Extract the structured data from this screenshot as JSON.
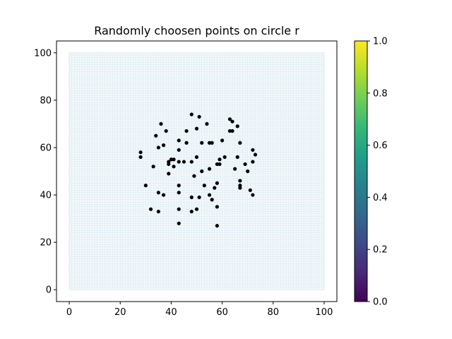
{
  "chart_data": {
    "type": "scatter",
    "title": "Randomly choosen points on circle r",
    "xlabel": "",
    "ylabel": "",
    "xlim": [
      -5,
      105
    ],
    "ylim": [
      -5,
      105
    ],
    "x_ticks": [
      0,
      20,
      40,
      60,
      80,
      100
    ],
    "y_ticks": [
      0,
      20,
      40,
      60,
      80,
      100
    ],
    "x_tick_labels": [
      "0",
      "20",
      "40",
      "60",
      "80",
      "100"
    ],
    "y_tick_labels": [
      "0",
      "20",
      "40",
      "60",
      "80",
      "100"
    ],
    "grid_extent": [
      0,
      100
    ],
    "grid_color": "#d6e8f0",
    "point_color": "#000000",
    "points": [
      [
        48,
        74
      ],
      [
        51,
        73
      ],
      [
        63,
        72
      ],
      [
        64,
        71
      ],
      [
        36,
        70
      ],
      [
        54,
        70
      ],
      [
        66,
        69
      ],
      [
        50,
        68
      ],
      [
        38,
        67
      ],
      [
        46,
        67
      ],
      [
        63,
        67
      ],
      [
        64,
        67
      ],
      [
        34,
        65
      ],
      [
        43,
        63
      ],
      [
        46,
        62
      ],
      [
        52,
        62
      ],
      [
        55,
        62
      ],
      [
        56,
        62
      ],
      [
        60,
        63
      ],
      [
        67,
        62
      ],
      [
        35,
        60
      ],
      [
        37,
        61
      ],
      [
        43,
        59
      ],
      [
        72,
        59
      ],
      [
        28,
        58
      ],
      [
        73,
        57
      ],
      [
        28,
        56
      ],
      [
        50,
        56
      ],
      [
        61,
        56
      ],
      [
        66,
        56
      ],
      [
        40,
        55
      ],
      [
        41,
        55
      ],
      [
        45,
        54
      ],
      [
        59,
        55
      ],
      [
        39,
        54
      ],
      [
        39,
        53
      ],
      [
        43,
        54
      ],
      [
        48,
        54
      ],
      [
        58,
        53
      ],
      [
        59,
        53
      ],
      [
        69,
        53
      ],
      [
        72,
        54
      ],
      [
        33,
        52
      ],
      [
        41,
        52
      ],
      [
        55,
        51
      ],
      [
        65,
        51
      ],
      [
        52,
        50
      ],
      [
        70,
        50
      ],
      [
        39,
        49
      ],
      [
        49,
        48
      ],
      [
        58,
        45
      ],
      [
        67,
        46
      ],
      [
        30,
        44
      ],
      [
        43,
        44
      ],
      [
        53,
        44
      ],
      [
        67,
        44
      ],
      [
        57,
        43
      ],
      [
        67,
        43
      ],
      [
        35,
        41
      ],
      [
        37,
        40
      ],
      [
        43,
        41
      ],
      [
        71,
        42
      ],
      [
        72,
        40
      ],
      [
        48,
        39
      ],
      [
        51,
        39
      ],
      [
        55,
        40
      ],
      [
        56,
        38
      ],
      [
        58,
        35
      ],
      [
        32,
        34
      ],
      [
        35,
        33
      ],
      [
        43,
        34
      ],
      [
        48,
        33
      ],
      [
        50,
        34
      ],
      [
        43,
        28
      ],
      [
        58,
        27
      ]
    ],
    "colorbar": {
      "range": [
        0.0,
        1.0
      ],
      "ticks": [
        0.0,
        0.2,
        0.4,
        0.6,
        0.8,
        1.0
      ],
      "tick_labels": [
        "0.0",
        "0.2",
        "0.4",
        "0.6",
        "0.8",
        "1.0"
      ],
      "colormap": "viridis",
      "stops": [
        "#440154",
        "#482878",
        "#3e4989",
        "#31688e",
        "#26828e",
        "#1f9e89",
        "#35b779",
        "#6ece58",
        "#b5de2b",
        "#fde725"
      ]
    }
  }
}
